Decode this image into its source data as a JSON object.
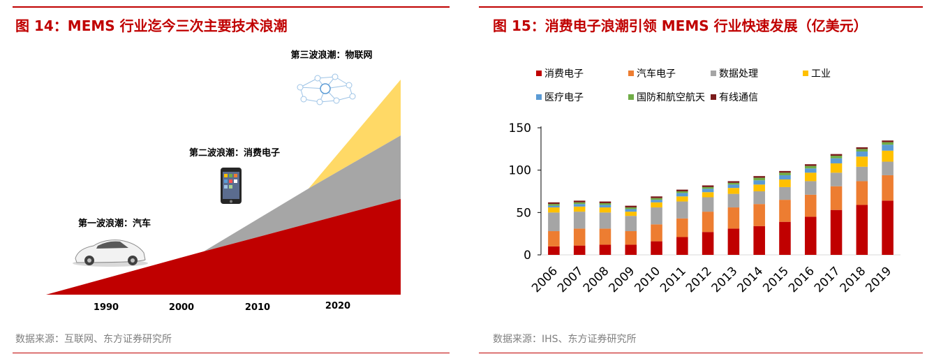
{
  "left": {
    "title": "图 14：MEMS 行业迄今三次主要技术浪潮",
    "source": "数据来源：互联网、东方证券研究所",
    "colors": {
      "car_wave": "#c00000",
      "consumer_wave": "#a6a6a6",
      "iot_wave": "#ffd966"
    },
    "waves": [
      {
        "label": "第一波浪潮：汽车",
        "icon": "car-image"
      },
      {
        "label": "第二波浪潮：消费电子",
        "icon": "smartphone-image"
      },
      {
        "label": "第三波浪潮：物联网",
        "icon": "network-icon"
      }
    ],
    "x_ticks": [
      "1990",
      "2000",
      "2010",
      "2020"
    ]
  },
  "right": {
    "title": "图 15：消费电子浪潮引领 MEMS 行业快速发展（亿美元）",
    "source": "数据来源：IHS、东方证券研究所"
  },
  "chart_data": {
    "type": "bar",
    "stacked": true,
    "categories": [
      "2006",
      "2007",
      "2008",
      "2009",
      "2010",
      "2011",
      "2012",
      "2013",
      "2014",
      "2015",
      "2016",
      "2017",
      "2018",
      "2019"
    ],
    "ylim": [
      0,
      150
    ],
    "yticks": [
      0,
      50,
      100,
      150
    ],
    "legend_position": "top",
    "grid": false,
    "series": [
      {
        "name": "消费电子",
        "color": "#c00000",
        "values": [
          10,
          11,
          12,
          12,
          16,
          21,
          27,
          31,
          34,
          39,
          45,
          53,
          59,
          64
        ]
      },
      {
        "name": "汽车电子",
        "color": "#ed7d31",
        "values": [
          18,
          20,
          19,
          16,
          20,
          22,
          24,
          25,
          26,
          26,
          26,
          28,
          28,
          30
        ]
      },
      {
        "name": "数据处理",
        "color": "#a5a5a5",
        "values": [
          22,
          20,
          19,
          18,
          20,
          20,
          17,
          16,
          15,
          15,
          16,
          16,
          17,
          16
        ]
      },
      {
        "name": "工业",
        "color": "#ffc000",
        "values": [
          6,
          6,
          6,
          5,
          6,
          6,
          6,
          7,
          8,
          9,
          10,
          11,
          12,
          13
        ]
      },
      {
        "name": "医疗电子",
        "color": "#5b9bd5",
        "values": [
          2,
          3,
          3,
          3,
          3,
          4,
          4,
          4,
          5,
          5,
          5,
          6,
          6,
          7
        ]
      },
      {
        "name": "国防和航空航天",
        "color": "#70ad47",
        "values": [
          2,
          2,
          2,
          2,
          2,
          2,
          2,
          2,
          3,
          3,
          3,
          3,
          3,
          3
        ]
      },
      {
        "name": "有线通信",
        "color": "#7b1c1c",
        "values": [
          2,
          2,
          2,
          2,
          2,
          2,
          2,
          2,
          2,
          2,
          2,
          2,
          2,
          2
        ]
      }
    ]
  }
}
